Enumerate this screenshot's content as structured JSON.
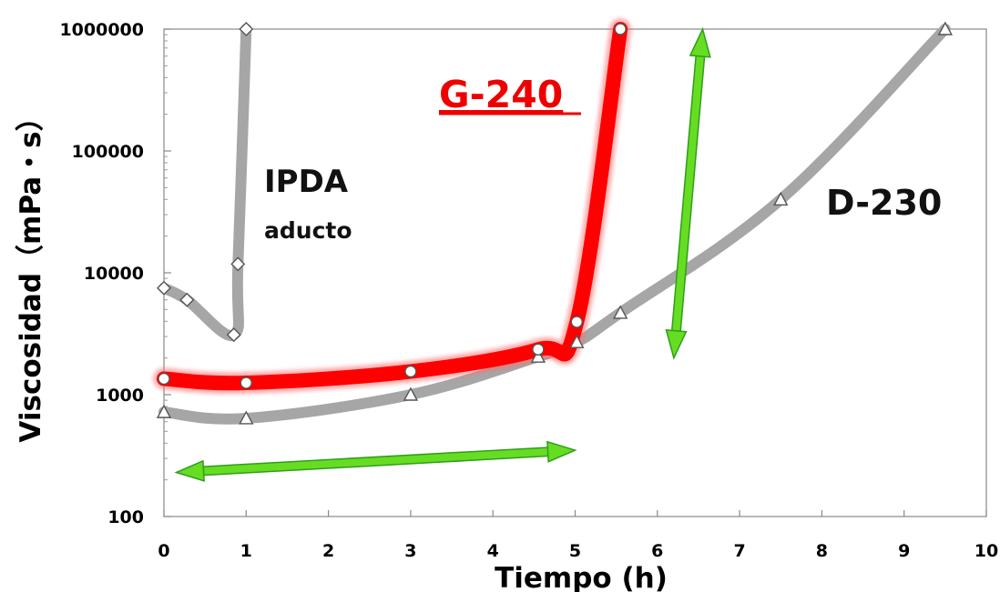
{
  "chart_data": {
    "type": "line",
    "title": "",
    "xlabel": "Tiempo (h)",
    "ylabel": "Viscosidad（mPa・s）",
    "xlim": [
      0,
      10
    ],
    "ylim": [
      100,
      1000000
    ],
    "yscale": "log",
    "grid": false,
    "x_ticks": [
      "0",
      "1",
      "2",
      "3",
      "4",
      "5",
      "6",
      "7",
      "8",
      "9",
      "10"
    ],
    "y_ticks": [
      "100",
      "1000",
      "10000",
      "100000",
      "1000000"
    ],
    "series": [
      {
        "name": "IPDA",
        "sublabel": "aducto",
        "color": "#a6a6a6",
        "marker": "diamond",
        "points": [
          [
            0,
            7500
          ],
          [
            0.28,
            6000
          ],
          [
            0.85,
            3100
          ],
          [
            0.9,
            11800
          ],
          [
            1.0,
            1000000
          ]
        ]
      },
      {
        "name": "G-240",
        "color": "#ff0000",
        "marker": "circle",
        "points": [
          [
            0,
            1350
          ],
          [
            1,
            1250
          ],
          [
            3,
            1550
          ],
          [
            4.55,
            2350
          ],
          [
            5.02,
            3950
          ],
          [
            5.55,
            1000000
          ]
        ]
      },
      {
        "name": "D-230",
        "color": "#a6a6a6",
        "marker": "triangle",
        "points": [
          [
            0,
            720
          ],
          [
            1,
            640
          ],
          [
            3,
            1000
          ],
          [
            4.55,
            2050
          ],
          [
            5.02,
            2700
          ],
          [
            5.55,
            4700
          ],
          [
            7.5,
            40000
          ],
          [
            9.5,
            1000000
          ]
        ]
      }
    ],
    "annotations": {
      "arrow_color": "#66dd22",
      "arrows": [
        {
          "from": [
            0.15,
            230
          ],
          "to": [
            5.0,
            350
          ]
        },
        {
          "from": [
            6.2,
            2000
          ],
          "to": [
            6.55,
            1000000
          ]
        }
      ]
    }
  }
}
